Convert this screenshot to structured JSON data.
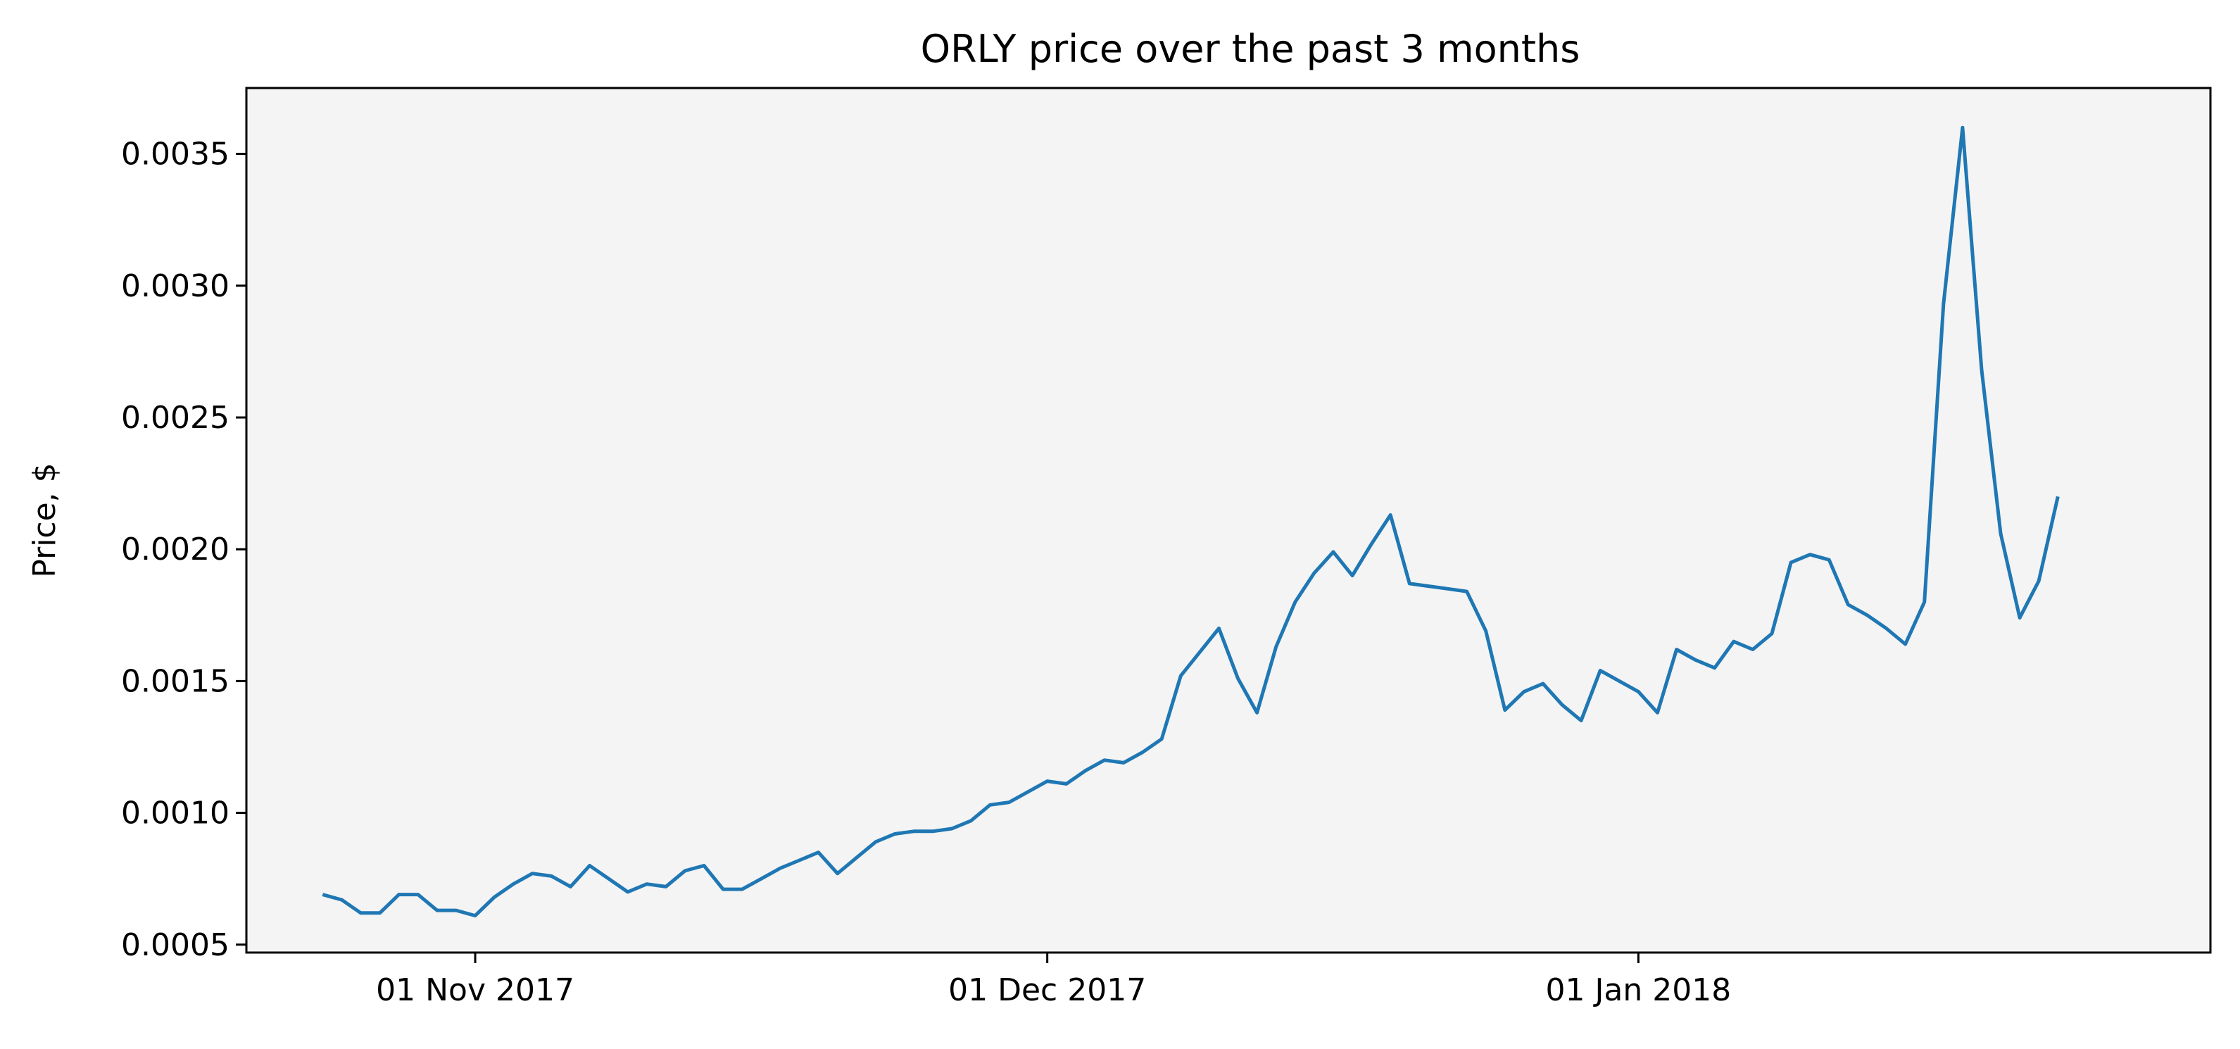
{
  "chart_data": {
    "type": "line",
    "title": "ORLY price over the past 3 months",
    "xlabel": "",
    "ylabel": "Price, $",
    "xlim": [
      "2017-10-20",
      "2018-01-31"
    ],
    "ylim": [
      0.00047,
      0.00375
    ],
    "grid": false,
    "legend": "none",
    "x_ticks": [
      {
        "date": "2017-11-01",
        "label": "01 Nov 2017"
      },
      {
        "date": "2017-12-01",
        "label": "01 Dec 2017"
      },
      {
        "date": "2018-01-01",
        "label": "01 Jan 2018"
      }
    ],
    "y_ticks": [
      {
        "value": 0.0005,
        "label": "0.0005"
      },
      {
        "value": 0.001,
        "label": "0.0010"
      },
      {
        "value": 0.0015,
        "label": "0.0015"
      },
      {
        "value": 0.002,
        "label": "0.0020"
      },
      {
        "value": 0.0025,
        "label": "0.0025"
      },
      {
        "value": 0.003,
        "label": "0.0030"
      },
      {
        "value": 0.0035,
        "label": "0.0035"
      }
    ],
    "series": [
      {
        "color": "#1f77b4",
        "points": [
          [
            "2017-10-24",
            0.00069
          ],
          [
            "2017-10-25",
            0.00067
          ],
          [
            "2017-10-26",
            0.00062
          ],
          [
            "2017-10-27",
            0.00062
          ],
          [
            "2017-10-28",
            0.00069
          ],
          [
            "2017-10-29",
            0.00069
          ],
          [
            "2017-10-30",
            0.00063
          ],
          [
            "2017-10-31",
            0.00063
          ],
          [
            "2017-11-01",
            0.00061
          ],
          [
            "2017-11-02",
            0.00068
          ],
          [
            "2017-11-03",
            0.00073
          ],
          [
            "2017-11-04",
            0.00077
          ],
          [
            "2017-11-05",
            0.00076
          ],
          [
            "2017-11-06",
            0.00072
          ],
          [
            "2017-11-07",
            0.0008
          ],
          [
            "2017-11-08",
            0.00075
          ],
          [
            "2017-11-09",
            0.0007
          ],
          [
            "2017-11-10",
            0.00073
          ],
          [
            "2017-11-11",
            0.00072
          ],
          [
            "2017-11-12",
            0.00078
          ],
          [
            "2017-11-13",
            0.0008
          ],
          [
            "2017-11-14",
            0.00071
          ],
          [
            "2017-11-15",
            0.00071
          ],
          [
            "2017-11-16",
            0.00075
          ],
          [
            "2017-11-17",
            0.00079
          ],
          [
            "2017-11-18",
            0.00082
          ],
          [
            "2017-11-19",
            0.00085
          ],
          [
            "2017-11-20",
            0.00077
          ],
          [
            "2017-11-21",
            0.00083
          ],
          [
            "2017-11-22",
            0.00089
          ],
          [
            "2017-11-23",
            0.00092
          ],
          [
            "2017-11-24",
            0.00093
          ],
          [
            "2017-11-25",
            0.00093
          ],
          [
            "2017-11-26",
            0.00094
          ],
          [
            "2017-11-27",
            0.00097
          ],
          [
            "2017-11-28",
            0.00103
          ],
          [
            "2017-11-29",
            0.00104
          ],
          [
            "2017-11-30",
            0.00108
          ],
          [
            "2017-12-01",
            0.00112
          ],
          [
            "2017-12-02",
            0.00111
          ],
          [
            "2017-12-03",
            0.00116
          ],
          [
            "2017-12-04",
            0.0012
          ],
          [
            "2017-12-05",
            0.00119
          ],
          [
            "2017-12-06",
            0.00123
          ],
          [
            "2017-12-07",
            0.00128
          ],
          [
            "2017-12-08",
            0.00152
          ],
          [
            "2017-12-09",
            0.00161
          ],
          [
            "2017-12-10",
            0.0017
          ],
          [
            "2017-12-11",
            0.00151
          ],
          [
            "2017-12-12",
            0.00138
          ],
          [
            "2017-12-13",
            0.00163
          ],
          [
            "2017-12-14",
            0.0018
          ],
          [
            "2017-12-15",
            0.00191
          ],
          [
            "2017-12-16",
            0.00199
          ],
          [
            "2017-12-17",
            0.0019
          ],
          [
            "2017-12-18",
            0.00202
          ],
          [
            "2017-12-19",
            0.00213
          ],
          [
            "2017-12-20",
            0.00187
          ],
          [
            "2017-12-21",
            0.00186
          ],
          [
            "2017-12-22",
            0.00185
          ],
          [
            "2017-12-23",
            0.00184
          ],
          [
            "2017-12-24",
            0.00169
          ],
          [
            "2017-12-25",
            0.00139
          ],
          [
            "2017-12-26",
            0.00146
          ],
          [
            "2017-12-27",
            0.00149
          ],
          [
            "2017-12-28",
            0.00141
          ],
          [
            "2017-12-29",
            0.00135
          ],
          [
            "2017-12-30",
            0.00154
          ],
          [
            "2017-12-31",
            0.0015
          ],
          [
            "2018-01-01",
            0.00146
          ],
          [
            "2018-01-02",
            0.00138
          ],
          [
            "2018-01-03",
            0.00162
          ],
          [
            "2018-01-04",
            0.00158
          ],
          [
            "2018-01-05",
            0.00155
          ],
          [
            "2018-01-06",
            0.00165
          ],
          [
            "2018-01-07",
            0.00162
          ],
          [
            "2018-01-08",
            0.00168
          ],
          [
            "2018-01-09",
            0.00195
          ],
          [
            "2018-01-10",
            0.00198
          ],
          [
            "2018-01-11",
            0.00196
          ],
          [
            "2018-01-12",
            0.00179
          ],
          [
            "2018-01-13",
            0.00175
          ],
          [
            "2018-01-14",
            0.0017
          ],
          [
            "2018-01-15",
            0.00164
          ],
          [
            "2018-01-16",
            0.0018
          ],
          [
            "2018-01-17",
            0.00293
          ],
          [
            "2018-01-18",
            0.0036
          ],
          [
            "2018-01-19",
            0.00268
          ],
          [
            "2018-01-20",
            0.00206
          ],
          [
            "2018-01-21",
            0.00174
          ],
          [
            "2018-01-22",
            0.00188
          ],
          [
            "2018-01-23",
            0.0022
          ]
        ]
      }
    ],
    "colors": {
      "plot_background": "#f4f4f4",
      "line": "#1f77b4",
      "axes": "#000000"
    }
  }
}
